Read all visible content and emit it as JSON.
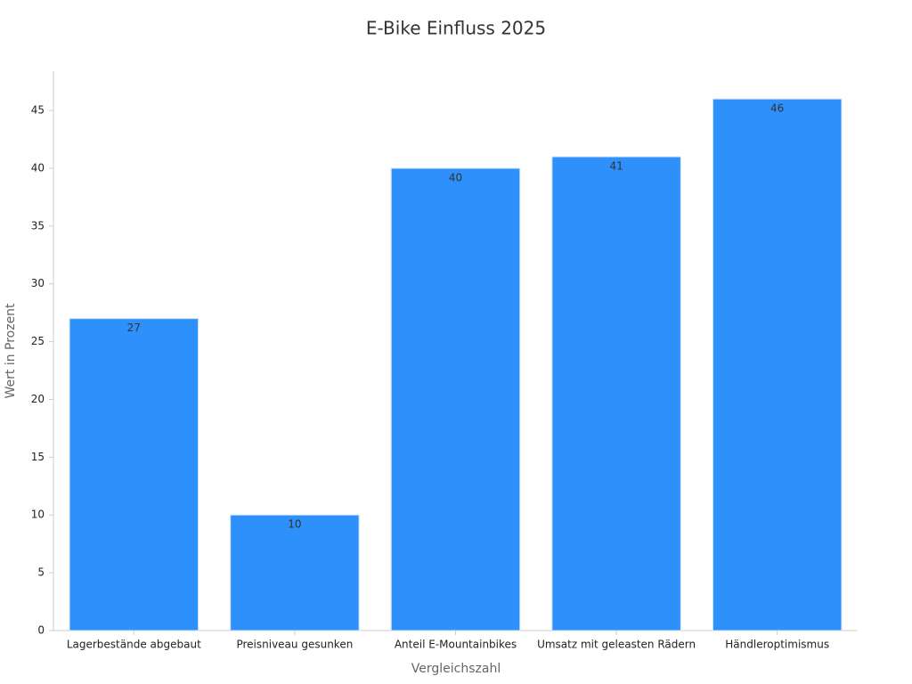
{
  "chart_data": {
    "type": "bar",
    "title": "E-Bike Einfluss 2025",
    "x_label": "Vergleichszahl",
    "y_label": "Wert in Prozent",
    "categories": [
      "Lagerbestände abgebaut",
      "Preisniveau gesunken",
      "Anteil E-Mountainbikes",
      "Umsatz mit geleasten Rädern",
      "Händleroptimismus"
    ],
    "values": [
      27,
      10,
      40,
      41,
      46
    ],
    "color": "#2e90fa",
    "ylim": [
      0,
      48.4
    ],
    "yticks": [
      0,
      5,
      10,
      15,
      20,
      25,
      30,
      35,
      40,
      45
    ],
    "grid": false
  }
}
